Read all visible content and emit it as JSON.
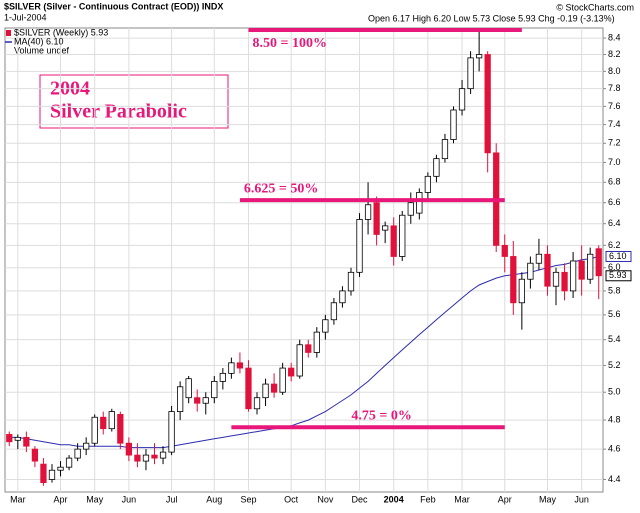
{
  "chart_data": {
    "type": "candlestick",
    "title": "$SILVER (Silver - Continuous Contract (EOD)) INDX",
    "date": "1-Jul-2004",
    "quote": "Open 6.17 High 6.20 Low 5.73 Close 5.93 Chg -0.19 (-3.13%)",
    "credit": "© StockCharts.com",
    "legend_note": "Volume undef",
    "callout": [
      "2004",
      "Silver Parabolic"
    ],
    "log_scale": true,
    "grid": true,
    "categories": [
      null,
      "Mar",
      null,
      null,
      null,
      null,
      "Apr",
      null,
      null,
      null,
      "May",
      null,
      null,
      null,
      "Jun",
      null,
      null,
      null,
      null,
      "Jul",
      null,
      null,
      null,
      null,
      "Aug",
      null,
      null,
      null,
      "Sep",
      null,
      null,
      null,
      null,
      "Oct",
      null,
      null,
      null,
      "Nov",
      null,
      null,
      null,
      "Dec",
      null,
      null,
      null,
      "2004",
      null,
      null,
      null,
      "Feb",
      null,
      null,
      null,
      "Mar",
      null,
      null,
      null,
      null,
      "Apr",
      null,
      null,
      null,
      null,
      "May",
      null,
      null,
      null,
      "Jun",
      null,
      null
    ],
    "ylim": [
      4.32,
      8.5
    ],
    "yticks": [
      4.4,
      4.6,
      4.8,
      {
        "value": 5,
        "label": "5.0"
      },
      5.2,
      5.4,
      5.6,
      5.8,
      {
        "value": 6,
        "label": "6.0"
      },
      6.2,
      6.4,
      6.6,
      6.8,
      {
        "value": 7,
        "label": "7.0"
      },
      7.2,
      7.4,
      7.6,
      7.8,
      {
        "value": 8,
        "label": "8.0"
      },
      8.2,
      8.4
    ],
    "series": [
      {
        "name": "$SILVER (Weekly) 5.93",
        "up_color": "#000000",
        "down_color": "#e0113a",
        "open": [
          4.7,
          4.66,
          4.68,
          4.6,
          4.5,
          4.4,
          4.46,
          4.48,
          4.54,
          4.6,
          4.64,
          4.82,
          4.74,
          4.84,
          4.64,
          4.56,
          4.52,
          4.56,
          4.54,
          4.58,
          4.86,
          4.96,
          4.96,
          4.92,
          4.96,
          5.08,
          5.14,
          5.22,
          5.18,
          4.88,
          4.96,
          5.06,
          5.0,
          5.18,
          5.12,
          5.36,
          5.3,
          5.46,
          5.56,
          5.7,
          5.8,
          5.96,
          6.44,
          6.6,
          6.34,
          6.38,
          6.1,
          6.48,
          6.5,
          6.7,
          6.86,
          7.04,
          7.24,
          7.56,
          7.8,
          8.16,
          8.2,
          7.1,
          6.2,
          6.1,
          5.7,
          5.9,
          6.04,
          6.12,
          5.84,
          5.96,
          5.8,
          6.06,
          5.9,
          6.17
        ],
        "high": [
          4.72,
          4.7,
          4.72,
          4.62,
          4.54,
          4.5,
          4.52,
          4.56,
          4.64,
          4.68,
          4.84,
          4.86,
          4.88,
          4.86,
          4.68,
          4.64,
          4.6,
          4.64,
          4.62,
          4.9,
          5.08,
          5.12,
          5.02,
          5.0,
          5.12,
          5.18,
          5.26,
          5.3,
          5.24,
          5.0,
          5.1,
          5.14,
          5.22,
          5.22,
          5.4,
          5.4,
          5.5,
          5.6,
          5.74,
          5.84,
          6.0,
          6.5,
          6.8,
          6.66,
          6.42,
          6.46,
          6.52,
          6.7,
          6.74,
          6.9,
          7.08,
          7.3,
          7.6,
          7.9,
          8.24,
          8.48,
          8.24,
          7.2,
          6.3,
          6.24,
          5.96,
          6.1,
          6.26,
          6.2,
          6.0,
          6.04,
          6.14,
          6.2,
          6.18,
          6.2
        ],
        "low": [
          4.62,
          4.6,
          4.58,
          4.48,
          4.36,
          4.38,
          4.42,
          4.46,
          4.52,
          4.56,
          4.62,
          4.7,
          4.72,
          4.6,
          4.52,
          4.48,
          4.46,
          4.5,
          4.5,
          4.56,
          4.8,
          4.92,
          4.86,
          4.84,
          4.92,
          5.02,
          5.1,
          5.14,
          4.86,
          4.84,
          4.9,
          4.96,
          4.98,
          5.08,
          5.1,
          5.26,
          5.26,
          5.4,
          5.52,
          5.66,
          5.76,
          5.92,
          6.3,
          6.2,
          6.22,
          6.02,
          6.06,
          6.4,
          6.44,
          6.62,
          6.8,
          7.0,
          7.2,
          7.5,
          7.74,
          8.0,
          6.9,
          6.14,
          5.96,
          5.6,
          5.48,
          5.82,
          5.98,
          5.76,
          5.68,
          5.72,
          5.74,
          5.76,
          5.86,
          5.73
        ],
        "close": [
          4.65,
          4.68,
          4.62,
          4.52,
          4.38,
          4.46,
          4.48,
          4.54,
          4.6,
          4.64,
          4.82,
          4.74,
          4.86,
          4.64,
          4.56,
          4.52,
          4.56,
          4.54,
          4.58,
          4.86,
          5.04,
          5.1,
          4.92,
          4.96,
          5.08,
          5.14,
          5.22,
          5.18,
          4.88,
          4.96,
          5.06,
          5.0,
          5.18,
          5.12,
          5.36,
          5.3,
          5.46,
          5.56,
          5.7,
          5.8,
          5.96,
          6.44,
          6.58,
          6.3,
          6.38,
          6.1,
          6.48,
          6.6,
          6.7,
          6.86,
          7.04,
          7.24,
          7.56,
          7.8,
          8.16,
          8.2,
          7.1,
          6.2,
          6.1,
          5.7,
          5.9,
          6.04,
          6.12,
          5.84,
          5.96,
          5.8,
          6.06,
          5.9,
          6.12,
          5.93
        ]
      },
      {
        "name": "MA(40) 6.10",
        "color": "#2b2bb0",
        "values": [
          4.68,
          4.68,
          4.67,
          4.66,
          4.65,
          4.64,
          4.63,
          4.63,
          4.62,
          4.62,
          4.62,
          4.62,
          4.62,
          4.62,
          4.61,
          4.61,
          4.61,
          4.61,
          4.61,
          4.62,
          4.63,
          4.64,
          4.65,
          4.66,
          4.67,
          4.68,
          4.69,
          4.7,
          4.71,
          4.72,
          4.73,
          4.74,
          4.75,
          4.76,
          4.78,
          4.8,
          4.83,
          4.86,
          4.9,
          4.94,
          4.98,
          5.03,
          5.08,
          5.14,
          5.2,
          5.26,
          5.32,
          5.38,
          5.44,
          5.5,
          5.56,
          5.62,
          5.68,
          5.74,
          5.8,
          5.85,
          5.88,
          5.91,
          5.93,
          5.94,
          5.95,
          5.96,
          5.98,
          6.0,
          6.02,
          6.03,
          6.05,
          6.07,
          6.08,
          6.1
        ]
      }
    ],
    "price_tags": [
      {
        "value": 6.1,
        "label": "6.10",
        "color": "#2b2bb0"
      },
      {
        "value": 5.93,
        "label": "5.93",
        "color": "#000000"
      }
    ],
    "annotations": [
      {
        "text": "8.50 = 100%",
        "value": 8.5,
        "from": 28,
        "to": 60
      },
      {
        "text": "6.625 = 50%",
        "value": 6.625,
        "from": 27,
        "to": 58
      },
      {
        "text": "4.75 = 0%",
        "value": 4.75,
        "from": 26,
        "to": 58
      }
    ],
    "annotation_color": "#e8177a"
  }
}
